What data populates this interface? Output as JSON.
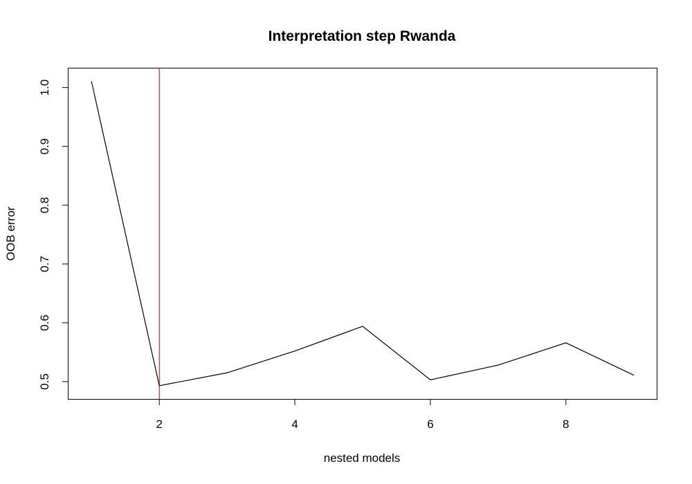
{
  "chart_data": {
    "type": "line",
    "title": "Interpretation step Rwanda",
    "xlabel": "nested models",
    "ylabel": "OOB error",
    "x": [
      1,
      2,
      3,
      4,
      5,
      6,
      7,
      8,
      9
    ],
    "series": [
      {
        "values": [
          1.01,
          0.493,
          0.515,
          0.552,
          0.594,
          0.503,
          0.528,
          0.566,
          0.511
        ],
        "color": "#000000"
      }
    ],
    "reference_line": {
      "x": 2,
      "color": "#cc0000"
    },
    "xlim": [
      0.66,
      9.34
    ],
    "ylim": [
      0.4705,
      1.0325
    ],
    "xticks": [
      2,
      4,
      6,
      8
    ],
    "yticks": [
      0.5,
      0.6,
      0.7,
      0.8,
      0.9,
      1.0
    ],
    "xtick_labels": [
      "2",
      "4",
      "6",
      "8"
    ],
    "ytick_labels": [
      "0.5",
      "0.6",
      "0.7",
      "0.8",
      "0.9",
      "1.0"
    ],
    "grid": false,
    "legend": "none"
  }
}
